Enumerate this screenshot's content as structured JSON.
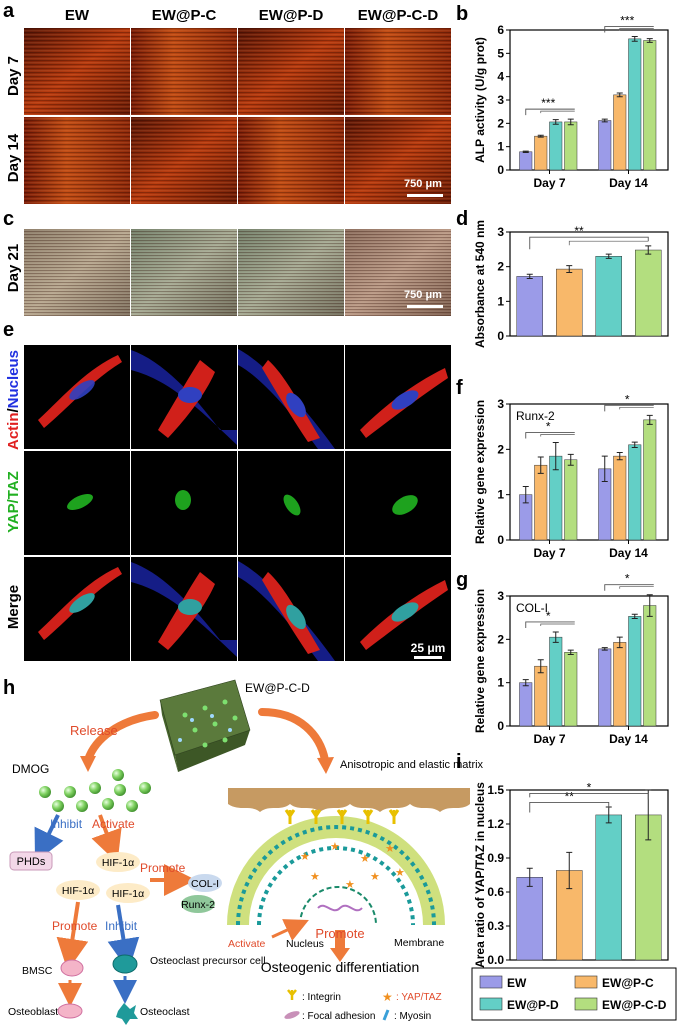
{
  "panels": {
    "a": "a",
    "b": "b",
    "c": "c",
    "d": "d",
    "e": "e",
    "f": "f",
    "g": "g",
    "h": "h",
    "i": "i"
  },
  "columns": [
    "EW",
    "EW@P-C",
    "EW@P-D",
    "EW@P-C-D"
  ],
  "rows_a": [
    "Day 7",
    "Day 14"
  ],
  "rows_c": [
    "Day 21"
  ],
  "rows_e": [
    "Actin",
    "/",
    "Nucleus",
    "YAP/TAZ",
    "Merge"
  ],
  "scalebars": {
    "a": "750 μm",
    "c": "750 μm",
    "e": "25 μm"
  },
  "colors": {
    "EW": "#9b9be8",
    "EW@P-C": "#f8b86a",
    "EW@P-D": "#63cfc6",
    "EW@P-C-D": "#b3de7f"
  },
  "schematic": {
    "ewpcd": "EW@P-C-D",
    "release": "Release",
    "dmog": "DMOG",
    "inhibit1": "Inhibit",
    "activate1": "Activate",
    "phds": "PHDs",
    "hif1": "HIF-1α",
    "hif2": "HIF-1α",
    "hif3": "HIF-1α",
    "promote1": "Promote",
    "col1": "COL-I",
    "runx2": "Runx-2",
    "promote2": "Promote",
    "inhibit2": "Inhibit",
    "bmsc": "BMSC",
    "ocp": "Osteoclast precursor cell",
    "osteoblast": "Osteoblast",
    "osteoclast": "Osteoclast",
    "matrix": "Anisotropic and elastic matrix",
    "activate2": "Activate",
    "nucleus": "Nucleus",
    "membrane": "Membrane",
    "promote3": "Promote",
    "differentiation": "Osteogenic differentiation",
    "legend_integrin": ": Integrin",
    "legend_yap": ": YAP/TAZ",
    "legend_fa": ": Focal adhesion",
    "legend_myosin": ": Myosin"
  },
  "legend": [
    "EW",
    "EW@P-C",
    "EW@P-D",
    "EW@P-C-D"
  ],
  "chart_data": [
    {
      "panel": "b",
      "type": "bar",
      "categories": [
        "Day 7",
        "Day 14"
      ],
      "ylabel": "ALP activity (U/g prot)",
      "ylim": [
        0,
        6
      ],
      "yticks": [
        0,
        1,
        2,
        3,
        4,
        5,
        6
      ],
      "series": [
        {
          "name": "EW",
          "values": [
            0.78,
            2.12
          ],
          "errors": [
            0.03,
            0.06
          ]
        },
        {
          "name": "EW@P-C",
          "values": [
            1.45,
            3.22
          ],
          "errors": [
            0.04,
            0.08
          ]
        },
        {
          "name": "EW@P-D",
          "values": [
            2.06,
            5.62
          ],
          "errors": [
            0.1,
            0.1
          ]
        },
        {
          "name": "EW@P-C-D",
          "values": [
            2.06,
            5.55
          ],
          "errors": [
            0.12,
            0.08
          ]
        }
      ],
      "significance": [
        "***",
        "***"
      ]
    },
    {
      "panel": "d",
      "type": "bar",
      "categories": [
        "EW",
        "EW@P-C",
        "EW@P-D",
        "EW@P-C-D"
      ],
      "ylabel": "Absorbance at 540 nm",
      "ylim": [
        0,
        3
      ],
      "yticks": [
        0,
        1,
        2,
        3
      ],
      "values": [
        1.72,
        1.93,
        2.3,
        2.48
      ],
      "errors": [
        0.06,
        0.1,
        0.06,
        0.12
      ],
      "significance": [
        "**"
      ]
    },
    {
      "panel": "f",
      "type": "bar",
      "title": "Runx-2",
      "categories": [
        "Day 7",
        "Day 14"
      ],
      "ylabel": "Relative gene expression",
      "ylim": [
        0,
        3
      ],
      "yticks": [
        0,
        1,
        2,
        3
      ],
      "series": [
        {
          "name": "EW",
          "values": [
            1.0,
            1.57
          ],
          "errors": [
            0.18,
            0.28
          ]
        },
        {
          "name": "EW@P-C",
          "values": [
            1.65,
            1.85
          ],
          "errors": [
            0.18,
            0.08
          ]
        },
        {
          "name": "EW@P-D",
          "values": [
            1.85,
            2.1
          ],
          "errors": [
            0.3,
            0.06
          ]
        },
        {
          "name": "EW@P-C-D",
          "values": [
            1.77,
            2.65
          ],
          "errors": [
            0.12,
            0.1
          ]
        }
      ],
      "significance": [
        "*",
        "*"
      ]
    },
    {
      "panel": "g",
      "type": "bar",
      "title": "COL-I",
      "categories": [
        "Day 7",
        "Day 14"
      ],
      "ylabel": "Relative gene expression",
      "ylim": [
        0,
        3
      ],
      "yticks": [
        0,
        1,
        2,
        3
      ],
      "series": [
        {
          "name": "EW",
          "values": [
            1.0,
            1.78
          ],
          "errors": [
            0.07,
            0.03
          ]
        },
        {
          "name": "EW@P-C",
          "values": [
            1.38,
            1.93
          ],
          "errors": [
            0.15,
            0.12
          ]
        },
        {
          "name": "EW@P-D",
          "values": [
            2.05,
            2.53
          ],
          "errors": [
            0.12,
            0.05
          ]
        },
        {
          "name": "EW@P-C-D",
          "values": [
            1.7,
            2.78
          ],
          "errors": [
            0.05,
            0.25
          ]
        }
      ],
      "significance": [
        "*",
        "*"
      ]
    },
    {
      "panel": "i",
      "type": "bar",
      "categories": [
        "EW",
        "EW@P-C",
        "EW@P-D",
        "EW@P-C-D"
      ],
      "ylabel": "Area ratio of YAP/TAZ in nucleus",
      "ylim": [
        0,
        1.5
      ],
      "yticks": [
        0.0,
        0.3,
        0.6,
        0.9,
        1.2,
        1.5
      ],
      "yticklabels": [
        "0.0",
        "0.3",
        "0.6",
        "0.9",
        "1.2",
        "1.5"
      ],
      "values": [
        0.73,
        0.79,
        1.28,
        1.28
      ],
      "errors": [
        0.08,
        0.16,
        0.07,
        0.22
      ],
      "significance": [
        "**",
        "*"
      ]
    }
  ]
}
